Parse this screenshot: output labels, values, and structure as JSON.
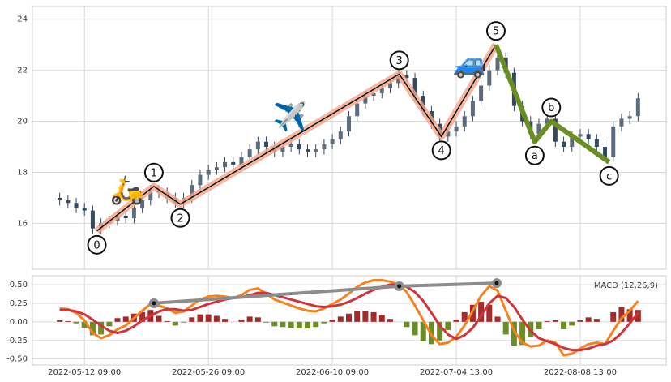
{
  "chart_data": [
    {
      "type": "candlestick",
      "color": "#34495e",
      "grid": true,
      "xlim": [
        -6.3,
        70.4
      ],
      "ylim": [
        14.2,
        24.5
      ],
      "yticks": [
        16,
        18,
        20,
        22,
        24
      ],
      "x": [
        -3,
        -2,
        -1,
        0,
        1,
        2,
        3,
        4,
        5,
        6,
        7,
        8,
        9,
        10,
        11,
        12,
        13,
        14,
        15,
        16,
        17,
        18,
        19,
        20,
        21,
        22,
        23,
        24,
        25,
        26,
        27,
        28,
        29,
        30,
        31,
        32,
        33,
        34,
        35,
        36,
        37,
        38,
        39,
        40,
        41,
        42,
        43,
        44,
        45,
        46,
        47,
        48,
        49,
        50,
        51,
        52,
        53,
        54,
        55,
        56,
        57,
        58,
        59,
        60,
        61,
        62,
        63,
        64,
        65,
        66,
        67
      ],
      "open": [
        17.0,
        16.9,
        16.8,
        16.6,
        16.5,
        15.8,
        16.0,
        16.1,
        16.3,
        16.2,
        16.6,
        16.9,
        17.3,
        17.2,
        17.0,
        16.8,
        17.0,
        17.5,
        17.9,
        18.1,
        18.2,
        18.4,
        18.3,
        18.6,
        18.9,
        19.2,
        19.0,
        18.8,
        19.0,
        19.1,
        18.9,
        18.8,
        18.9,
        19.1,
        19.3,
        19.6,
        20.2,
        20.7,
        21.0,
        21.1,
        21.3,
        21.5,
        21.8,
        21.7,
        21.0,
        20.4,
        19.9,
        19.4,
        19.6,
        19.8,
        20.2,
        20.8,
        21.4,
        22.0,
        22.5,
        21.9,
        20.6,
        20.0,
        19.5,
        19.9,
        20.1,
        19.2,
        19.0,
        19.4,
        19.5,
        19.3,
        19.0,
        18.6,
        19.8,
        20.1,
        20.2
      ],
      "high": [
        17.2,
        17.1,
        17.0,
        16.8,
        16.7,
        16.2,
        16.3,
        16.5,
        16.5,
        16.8,
        17.1,
        17.5,
        17.5,
        17.4,
        17.2,
        17.2,
        17.7,
        18.1,
        18.3,
        18.4,
        18.6,
        18.6,
        18.8,
        19.1,
        19.4,
        19.4,
        19.2,
        19.2,
        19.3,
        19.3,
        19.1,
        19.1,
        19.3,
        19.5,
        19.8,
        20.4,
        20.9,
        21.2,
        21.3,
        21.5,
        21.7,
        22.0,
        22.0,
        21.9,
        21.2,
        20.6,
        20.1,
        19.8,
        20.0,
        20.4,
        21.0,
        21.6,
        22.2,
        22.7,
        22.7,
        22.1,
        20.8,
        20.2,
        20.1,
        20.3,
        20.3,
        19.4,
        19.6,
        19.7,
        19.7,
        19.5,
        19.2,
        20.0,
        20.3,
        20.4,
        21.1
      ],
      "low": [
        16.7,
        16.6,
        16.4,
        16.3,
        15.6,
        15.6,
        15.8,
        15.9,
        16.0,
        16.0,
        16.4,
        16.7,
        17.0,
        16.8,
        16.6,
        16.6,
        16.8,
        17.3,
        17.7,
        17.9,
        18.0,
        18.1,
        18.1,
        18.4,
        18.7,
        18.8,
        18.6,
        18.6,
        18.8,
        18.7,
        18.6,
        18.6,
        18.7,
        18.9,
        19.1,
        19.4,
        20.0,
        20.5,
        20.8,
        20.9,
        21.1,
        21.3,
        21.5,
        20.8,
        20.2,
        19.7,
        19.2,
        19.2,
        19.4,
        19.6,
        20.0,
        20.6,
        21.2,
        21.8,
        21.7,
        20.4,
        19.8,
        19.3,
        19.3,
        19.7,
        19.0,
        18.8,
        18.8,
        19.2,
        19.1,
        18.8,
        18.4,
        18.4,
        19.6,
        19.9,
        20.0
      ],
      "close": [
        16.9,
        16.8,
        16.6,
        16.5,
        15.8,
        16.0,
        16.1,
        16.3,
        16.2,
        16.6,
        16.9,
        17.3,
        17.2,
        17.0,
        16.8,
        17.0,
        17.5,
        17.9,
        18.1,
        18.2,
        18.4,
        18.3,
        18.6,
        18.9,
        19.2,
        19.0,
        18.8,
        19.0,
        19.1,
        18.9,
        18.8,
        18.9,
        19.1,
        19.3,
        19.6,
        20.2,
        20.7,
        21.0,
        21.1,
        21.3,
        21.5,
        21.8,
        21.7,
        21.0,
        20.4,
        19.9,
        19.4,
        19.6,
        19.8,
        20.2,
        20.8,
        21.4,
        22.0,
        22.5,
        21.9,
        20.6,
        20.0,
        19.5,
        19.9,
        20.1,
        19.2,
        19.0,
        19.4,
        19.5,
        19.3,
        19.0,
        18.6,
        19.8,
        20.1,
        20.2,
        20.9
      ],
      "waves": [
        {
          "label": "0",
          "x": 1.5,
          "y": 15.7
        },
        {
          "label": "1",
          "x": 8.4,
          "y": 17.45
        },
        {
          "label": "2",
          "x": 11.6,
          "y": 16.75
        },
        {
          "label": "3",
          "x": 38.1,
          "y": 21.85
        },
        {
          "label": "4",
          "x": 43.2,
          "y": 19.4
        },
        {
          "label": "5",
          "x": 49.8,
          "y": 23.0
        },
        {
          "label": "a",
          "x": 54.5,
          "y": 19.2
        },
        {
          "label": "b",
          "x": 56.5,
          "y": 20.0
        },
        {
          "label": "c",
          "x": 63.5,
          "y": 18.4
        }
      ],
      "impulse_color": "#111111",
      "impulse_glow": "#f4a58a",
      "correction_color": "#6b8e23",
      "icons": [
        "🛵",
        "✈️",
        "🚙"
      ]
    },
    {
      "type": "macd",
      "label": "MACD (12,26,9)",
      "grid": true,
      "xlim": [
        -6.3,
        70.4
      ],
      "ylim": [
        -0.58,
        0.62
      ],
      "yticks": [
        {
          "value": 0.5,
          "label": "0.50"
        },
        0.25,
        {
          "value": 0,
          "label": "0.00"
        },
        -0.25,
        {
          "value": -0.5,
          "label": "-0.50"
        }
      ],
      "xticks": [
        {
          "value": 0,
          "label": "2022-05-12 09:00"
        },
        {
          "value": 15,
          "label": "2022-05-26 09:00"
        },
        {
          "value": 30,
          "label": "2022-06-10 09:00"
        },
        {
          "value": 45,
          "label": "2022-07-04 13:00"
        },
        {
          "value": 60,
          "label": "2022-08-08 13:00"
        }
      ],
      "x": [
        -3,
        -2,
        -1,
        0,
        1,
        2,
        3,
        4,
        5,
        6,
        7,
        8,
        9,
        10,
        11,
        12,
        13,
        14,
        15,
        16,
        17,
        18,
        19,
        20,
        21,
        22,
        23,
        24,
        25,
        26,
        27,
        28,
        29,
        30,
        31,
        32,
        33,
        34,
        35,
        36,
        37,
        38,
        39,
        40,
        41,
        42,
        43,
        44,
        45,
        46,
        47,
        48,
        49,
        50,
        51,
        52,
        53,
        54,
        55,
        56,
        57,
        58,
        59,
        60,
        61,
        62,
        63,
        64,
        65,
        66,
        67
      ],
      "series": [
        {
          "name": "macd",
          "color": "#f5821f",
          "values": [
            0.18,
            0.17,
            0.12,
            0.02,
            -0.15,
            -0.22,
            -0.18,
            -0.1,
            -0.05,
            0.05,
            0.15,
            0.24,
            0.22,
            0.18,
            0.12,
            0.14,
            0.22,
            0.3,
            0.34,
            0.35,
            0.34,
            0.32,
            0.36,
            0.43,
            0.45,
            0.38,
            0.3,
            0.26,
            0.22,
            0.18,
            0.15,
            0.14,
            0.18,
            0.24,
            0.3,
            0.38,
            0.47,
            0.53,
            0.56,
            0.56,
            0.54,
            0.5,
            0.4,
            0.22,
            0.02,
            -0.18,
            -0.3,
            -0.28,
            -0.2,
            -0.05,
            0.15,
            0.35,
            0.48,
            0.42,
            0.15,
            -0.12,
            -0.28,
            -0.33,
            -0.32,
            -0.25,
            -0.28,
            -0.45,
            -0.43,
            -0.36,
            -0.3,
            -0.28,
            -0.3,
            -0.12,
            0.05,
            0.15,
            0.28
          ]
        },
        {
          "name": "signal",
          "color": "#d0343b",
          "values": [
            0.16,
            0.16,
            0.14,
            0.1,
            0.03,
            -0.05,
            -0.12,
            -0.15,
            -0.12,
            -0.06,
            0.02,
            0.08,
            0.14,
            0.17,
            0.17,
            0.15,
            0.16,
            0.2,
            0.24,
            0.27,
            0.3,
            0.32,
            0.33,
            0.36,
            0.39,
            0.39,
            0.36,
            0.33,
            0.3,
            0.27,
            0.24,
            0.21,
            0.2,
            0.21,
            0.23,
            0.27,
            0.32,
            0.38,
            0.43,
            0.47,
            0.5,
            0.5,
            0.47,
            0.4,
            0.28,
            0.12,
            -0.05,
            -0.17,
            -0.23,
            -0.18,
            -0.08,
            0.08,
            0.25,
            0.35,
            0.32,
            0.2,
            0.03,
            -0.12,
            -0.22,
            -0.26,
            -0.3,
            -0.35,
            -0.38,
            -0.38,
            -0.36,
            -0.32,
            -0.3,
            -0.25,
            -0.15,
            -0.02,
            0.12
          ]
        }
      ],
      "hist": [
        0.02,
        0.01,
        -0.02,
        -0.08,
        -0.18,
        -0.17,
        -0.06,
        0.05,
        0.07,
        0.11,
        0.13,
        0.16,
        0.08,
        0.01,
        -0.05,
        -0.01,
        0.06,
        0.1,
        0.1,
        0.08,
        0.04,
        0.0,
        0.03,
        0.07,
        0.06,
        -0.01,
        -0.06,
        -0.07,
        -0.08,
        -0.09,
        -0.09,
        -0.07,
        -0.02,
        0.03,
        0.07,
        0.11,
        0.15,
        0.15,
        0.13,
        0.09,
        0.04,
        0.0,
        -0.07,
        -0.18,
        -0.26,
        -0.3,
        -0.25,
        -0.11,
        0.03,
        0.13,
        0.23,
        0.27,
        0.23,
        0.07,
        -0.17,
        -0.32,
        -0.31,
        -0.21,
        -0.1,
        0.01,
        0.02,
        -0.1,
        -0.05,
        0.02,
        0.06,
        0.04,
        0.0,
        0.13,
        0.2,
        0.17,
        0.16
      ],
      "hist_colors": [
        "#a52a2a",
        "#6b8e23"
      ],
      "divergence": {
        "color": "#8c8c8c",
        "x": [
          8.4,
          38.1,
          49.9
        ],
        "y": [
          0.25,
          0.48,
          0.52
        ]
      }
    }
  ]
}
